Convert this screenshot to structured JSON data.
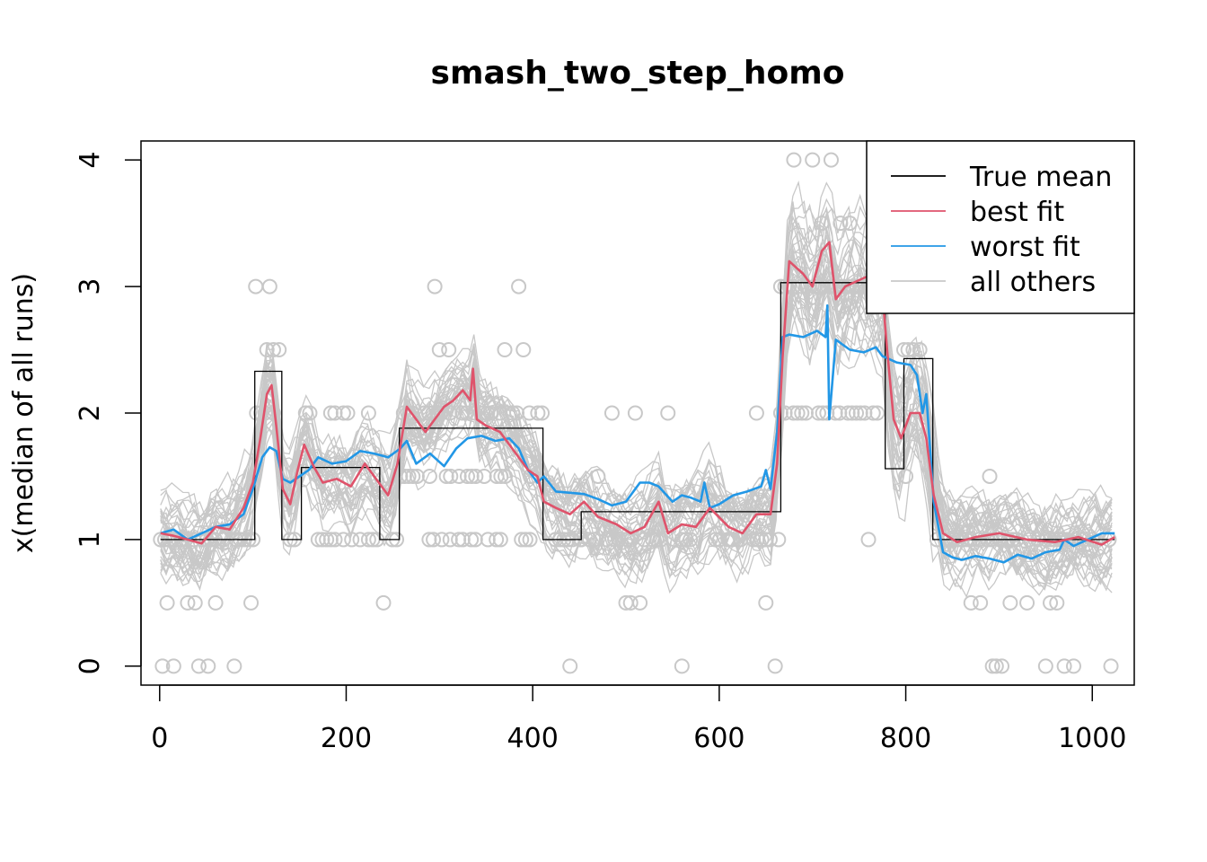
{
  "chart_data": {
    "type": "line",
    "title": "smash_two_step_homo",
    "xlabel": "",
    "ylabel": "x(median of all runs)",
    "xlim": [
      -20,
      1045
    ],
    "ylim": [
      -0.15,
      4.15
    ],
    "xticks": [
      0,
      200,
      400,
      600,
      800,
      1000
    ],
    "xtick_labels": [
      "0",
      "200",
      "400",
      "600",
      "800",
      "1000"
    ],
    "yticks": [
      0,
      1,
      2,
      3,
      4
    ],
    "ytick_labels": [
      "0",
      "1",
      "2",
      "3",
      "4"
    ],
    "grid": false,
    "legend_position": "top-right",
    "legend": [
      {
        "label": "True mean",
        "color": "#000000"
      },
      {
        "label": "best fit",
        "color": "#DF536B"
      },
      {
        "label": "worst fit",
        "color": "#2297E6"
      },
      {
        "label": "all others",
        "color": "#C8C8C8"
      }
    ],
    "colors": {
      "true_mean": "#000000",
      "best_fit": "#DF536B",
      "worst_fit": "#2297E6",
      "others": "#C8C8C8",
      "points": "#C8C8C8"
    },
    "true_mean": {
      "x": [
        1,
        102,
        102,
        131,
        131,
        152,
        152,
        236,
        236,
        257,
        257,
        411,
        411,
        452,
        452,
        666,
        666,
        778,
        778,
        798,
        798,
        829,
        829,
        1024
      ],
      "y": [
        1.0,
        1.0,
        2.33,
        2.33,
        1.0,
        1.0,
        1.57,
        1.57,
        1.0,
        1.0,
        1.88,
        1.88,
        1.0,
        1.0,
        1.22,
        1.22,
        3.03,
        3.03,
        1.56,
        1.56,
        2.43,
        2.43,
        1.0,
        1.0
      ]
    },
    "best_fit": {
      "x": [
        1,
        15,
        30,
        45,
        60,
        75,
        90,
        100,
        108,
        115,
        120,
        125,
        132,
        140,
        148,
        155,
        165,
        175,
        190,
        205,
        220,
        235,
        245,
        255,
        265,
        275,
        285,
        295,
        305,
        315,
        325,
        333,
        336,
        340,
        350,
        365,
        380,
        395,
        405,
        412,
        425,
        440,
        455,
        470,
        490,
        505,
        520,
        535,
        545,
        560,
        575,
        590,
        610,
        625,
        640,
        655,
        662,
        668,
        675,
        690,
        700,
        710,
        718,
        725,
        735,
        750,
        765,
        775,
        780,
        787,
        795,
        805,
        815,
        822,
        830,
        840,
        855,
        875,
        900,
        930,
        960,
        985,
        1010,
        1024
      ],
      "y": [
        1.05,
        1.03,
        1.0,
        0.97,
        1.1,
        1.08,
        1.25,
        1.45,
        1.8,
        2.15,
        2.22,
        1.9,
        1.4,
        1.28,
        1.55,
        1.75,
        1.58,
        1.45,
        1.48,
        1.42,
        1.6,
        1.45,
        1.35,
        1.6,
        2.05,
        1.95,
        1.85,
        1.95,
        2.05,
        2.1,
        2.18,
        2.1,
        2.35,
        1.95,
        1.9,
        1.85,
        1.7,
        1.55,
        1.5,
        1.3,
        1.25,
        1.2,
        1.3,
        1.18,
        1.12,
        1.05,
        1.1,
        1.3,
        1.05,
        1.12,
        1.1,
        1.25,
        1.1,
        1.05,
        1.2,
        1.2,
        1.6,
        2.45,
        3.2,
        3.1,
        3.0,
        3.28,
        3.35,
        2.9,
        3.0,
        3.05,
        3.1,
        2.95,
        2.5,
        1.95,
        1.8,
        2.0,
        2.0,
        1.8,
        1.35,
        1.05,
        0.98,
        1.02,
        1.05,
        1.0,
        0.98,
        1.02,
        0.96,
        1.02
      ]
    },
    "worst_fit": {
      "x": [
        1,
        15,
        30,
        45,
        60,
        75,
        90,
        100,
        110,
        118,
        125,
        132,
        140,
        150,
        160,
        170,
        185,
        200,
        215,
        230,
        245,
        258,
        265,
        275,
        290,
        305,
        318,
        330,
        345,
        360,
        375,
        385,
        395,
        405,
        412,
        425,
        440,
        455,
        470,
        485,
        500,
        515,
        525,
        535,
        550,
        560,
        570,
        580,
        584,
        590,
        600,
        615,
        630,
        645,
        650,
        655,
        662,
        668,
        675,
        690,
        705,
        714,
        716,
        718,
        725,
        740,
        755,
        768,
        775,
        790,
        805,
        812,
        818,
        822,
        830,
        840,
        850,
        860,
        875,
        890,
        905,
        920,
        935,
        950,
        965,
        970,
        980,
        995,
        1010,
        1024
      ],
      "y": [
        1.05,
        1.08,
        1.0,
        1.05,
        1.1,
        1.12,
        1.2,
        1.4,
        1.65,
        1.73,
        1.7,
        1.48,
        1.45,
        1.5,
        1.55,
        1.65,
        1.6,
        1.62,
        1.7,
        1.68,
        1.65,
        1.72,
        1.78,
        1.6,
        1.68,
        1.58,
        1.72,
        1.8,
        1.82,
        1.78,
        1.8,
        1.72,
        1.55,
        1.45,
        1.5,
        1.38,
        1.37,
        1.36,
        1.32,
        1.27,
        1.3,
        1.45,
        1.45,
        1.42,
        1.3,
        1.35,
        1.33,
        1.3,
        1.45,
        1.25,
        1.28,
        1.35,
        1.38,
        1.42,
        1.55,
        1.4,
        1.85,
        2.6,
        2.62,
        2.6,
        2.65,
        2.6,
        2.85,
        1.95,
        2.58,
        2.5,
        2.48,
        2.52,
        2.45,
        2.4,
        2.38,
        2.3,
        2.0,
        2.15,
        1.3,
        0.9,
        0.86,
        0.84,
        0.87,
        0.85,
        0.82,
        0.88,
        0.85,
        0.9,
        0.92,
        1.0,
        0.95,
        1.0,
        1.05,
        1.05
      ]
    },
    "points": {
      "x": [
        3,
        8,
        15,
        30,
        38,
        42,
        52,
        60,
        80,
        98,
        103,
        115,
        118,
        122,
        128,
        240,
        258,
        295,
        300,
        310,
        338,
        355,
        370,
        385,
        390,
        440,
        470,
        485,
        500,
        505,
        510,
        515,
        545,
        560,
        612,
        640,
        650,
        660,
        680,
        700,
        710,
        720,
        730,
        740,
        760,
        800,
        808,
        815,
        870,
        880,
        890,
        893,
        897,
        903,
        912,
        930,
        950,
        955,
        962,
        970,
        980,
        1020
      ],
      "y": [
        0.0,
        0.5,
        0.0,
        0.5,
        0.5,
        0.0,
        0.0,
        0.5,
        0.0,
        0.5,
        3.0,
        2.5,
        3.0,
        2.5,
        2.5,
        0.5,
        1.5,
        3.0,
        2.5,
        2.5,
        2.0,
        2.0,
        2.5,
        3.0,
        2.5,
        0.0,
        1.5,
        2.0,
        0.5,
        0.5,
        2.0,
        0.5,
        2.0,
        0.0,
        1.0,
        2.0,
        0.5,
        0.0,
        4.0,
        4.0,
        3.5,
        4.0,
        3.5,
        3.5,
        1.0,
        1.5,
        2.5,
        2.5,
        0.5,
        0.5,
        1.5,
        0.0,
        0.0,
        0.0,
        0.5,
        0.5,
        0.0,
        0.5,
        0.5,
        0.0,
        0.0,
        0.0
      ]
    }
  }
}
